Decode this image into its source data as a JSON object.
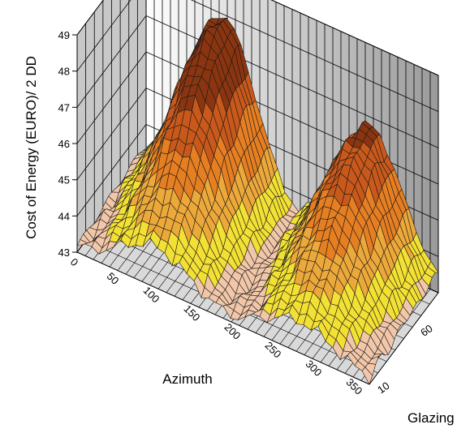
{
  "chart_data": {
    "type": "surface",
    "title": "",
    "zlabel": "Cost of Energy (EURO)/ 2 DD",
    "xlabel": "Azimuth",
    "ylabel": "Glazing",
    "x_ticks": [
      "0",
      "50",
      "100",
      "150",
      "200",
      "250",
      "300",
      "350"
    ],
    "y_ticks": [
      "10",
      "60"
    ],
    "z_ticks": [
      "43",
      "44",
      "45",
      "46",
      "47",
      "48",
      "49"
    ],
    "xlim": [
      0,
      360
    ],
    "ylim": [
      10,
      90
    ],
    "zlim": [
      43,
      49
    ],
    "grid": true,
    "color_bands": [
      {
        "from": 43.0,
        "to": 43.6,
        "color": "#f2c7a9"
      },
      {
        "from": 43.6,
        "to": 44.3,
        "color": "#f3e034"
      },
      {
        "from": 44.3,
        "to": 45.0,
        "color": "#eda83a"
      },
      {
        "from": 45.0,
        "to": 45.8,
        "color": "#e67e22"
      },
      {
        "from": 45.8,
        "to": 46.6,
        "color": "#c9591a"
      },
      {
        "from": 46.6,
        "to": 49.0,
        "color": "#8b3510"
      }
    ],
    "peaks": [
      {
        "azimuth": 95,
        "glazing": 85,
        "cost": 48.0
      },
      {
        "azimuth": 275,
        "glazing": 85,
        "cost": 46.8
      }
    ],
    "minimum": {
      "azimuth": 0,
      "glazing": 10,
      "cost": 43.1
    }
  }
}
